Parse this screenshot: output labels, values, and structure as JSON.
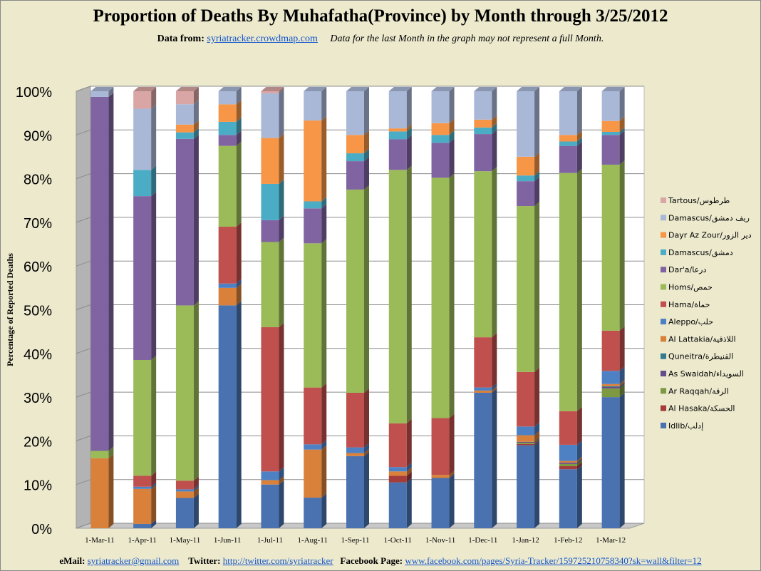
{
  "title": "Proportion of Deaths By Muhafatha(Province) by Month through 3/25/2012",
  "subtitle": {
    "prefix": "Data from:",
    "link": "syriatracker.crowdmap.com",
    "note": "Data for the last Month in the graph may not represent a full Month."
  },
  "footer": {
    "email_label": "eMail:",
    "email": "syriatracker@gmail.com",
    "twitter_label": "Twitter:",
    "twitter": "http://twitter.com/syriatracker",
    "facebook_label": "Facebook  Page:",
    "facebook": "www.facebook.com/pages/Syria-Tracker/159725210758340?sk=wall&filter=12"
  },
  "chart_data": {
    "type": "bar",
    "stacked": true,
    "percent_stacked": true,
    "three_d": true,
    "title": "Proportion of Deaths By Muhafatha(Province) by Month through 3/25/2012",
    "ylabel": "Percentage of Reported Deaths",
    "xlabel": "",
    "ylim": [
      0,
      100
    ],
    "yticks": [
      "0%",
      "10%",
      "20%",
      "30%",
      "40%",
      "50%",
      "60%",
      "70%",
      "80%",
      "90%",
      "100%"
    ],
    "grid": true,
    "legend_position": "right",
    "categories": [
      "1-Mar-11",
      "1-Apr-11",
      "1-May-11",
      "1-Jun-11",
      "1-Jul-11",
      "1-Aug-11",
      "1-Sep-11",
      "1-Oct-11",
      "1-Nov-11",
      "1-Dec-11",
      "1-Jan-12",
      "1-Feb-12",
      "1-Mar-12"
    ],
    "series": [
      {
        "name": "Idlib/إدلب",
        "color": "#4a72b0",
        "values": [
          0,
          1,
          7,
          51,
          10,
          7,
          16.5,
          10.5,
          11.5,
          31,
          19,
          13.5,
          30
        ]
      },
      {
        "name": "Al Hasaka/الحسكة",
        "color": "#a33c3a",
        "values": [
          0,
          0,
          0,
          0,
          0,
          0,
          0,
          1.5,
          0,
          0,
          0.3,
          0.7,
          0
        ]
      },
      {
        "name": "Ar Raqqah/الرقة",
        "color": "#7d9a43",
        "values": [
          0,
          0,
          0,
          0,
          0,
          0,
          0,
          0,
          0,
          0,
          0.3,
          0.5,
          2
        ]
      },
      {
        "name": "As Swaidah/السويداء",
        "color": "#654c8c",
        "values": [
          0,
          0,
          0,
          0,
          0,
          0,
          0,
          0,
          0,
          0,
          0.2,
          0.3,
          0.3
        ]
      },
      {
        "name": "Quneitra/القنيطرة",
        "color": "#357a8e",
        "values": [
          0,
          0,
          0,
          0,
          0,
          0,
          0,
          0,
          0,
          0,
          0,
          0,
          0.2
        ]
      },
      {
        "name": "Al Lattakia/اللاذقية",
        "color": "#d9813a",
        "values": [
          16,
          8,
          1.5,
          4,
          1,
          11,
          0.7,
          1,
          0.7,
          0.5,
          1.5,
          0.4,
          0.5
        ]
      },
      {
        "name": "Aleppo/حلب",
        "color": "#4e80c4",
        "values": [
          0,
          0.5,
          0.5,
          1,
          2,
          1.2,
          1.3,
          1,
          0,
          0.7,
          2,
          3.7,
          3
        ]
      },
      {
        "name": "Hama/حماة",
        "color": "#c0504d",
        "values": [
          0,
          2.5,
          2,
          13,
          33,
          13,
          12.5,
          10,
          13,
          11.5,
          12.5,
          7.7,
          9.2
        ]
      },
      {
        "name": "Homs/حمص",
        "color": "#9bbb59",
        "values": [
          1.7,
          26.5,
          40.5,
          18.5,
          19.5,
          33,
          46.5,
          58,
          55,
          38,
          38,
          54.5,
          38
        ]
      },
      {
        "name": "Dar'a/درعا",
        "color": "#8064a2",
        "values": [
          81,
          37.5,
          38.5,
          2.5,
          5,
          8,
          6.5,
          7,
          8,
          8.5,
          5.7,
          6.2,
          6.8
        ]
      },
      {
        "name": "Damascus/دمشق",
        "color": "#4bacc6",
        "values": [
          0,
          6,
          1.5,
          3,
          8.3,
          1.6,
          1.8,
          1.8,
          1.8,
          1.5,
          1.3,
          1,
          0.7
        ]
      },
      {
        "name": "Dayr Az Zour/دير الزور",
        "color": "#f79646",
        "values": [
          0,
          0,
          1.8,
          4,
          10.5,
          18.5,
          4.2,
          0.7,
          2.7,
          1.8,
          4.3,
          1.5,
          2.5
        ]
      },
      {
        "name": "Damascus/ريف دمشق",
        "color": "#aab8d8",
        "values": [
          1.3,
          14,
          4.7,
          3,
          10.2,
          6.7,
          10,
          8.5,
          7.3,
          6.5,
          15,
          10,
          6.8
        ]
      },
      {
        "name": "Tartous/طرطوس",
        "color": "#d9a6a5",
        "values": [
          0,
          4,
          3,
          0,
          0.5,
          0,
          0,
          0,
          0,
          0,
          0,
          0,
          0
        ]
      }
    ]
  }
}
